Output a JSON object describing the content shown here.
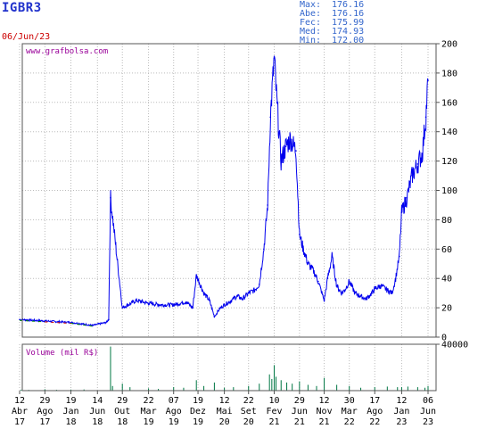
{
  "header": {
    "ticker": "IGBR3",
    "date": "06/Jun/23",
    "stats": [
      {
        "label": "Max:",
        "value": "176.16"
      },
      {
        "label": "Abe:",
        "value": "176.16"
      },
      {
        "label": "Fec:",
        "value": "175.99"
      },
      {
        "label": "Med:",
        "value": "174.93"
      },
      {
        "label": "Min:",
        "value": "172.00"
      }
    ],
    "watermark": "www.grafbolsa.com"
  },
  "colors": {
    "price_line": "#0000ee",
    "price_low": "#cc0000",
    "price_mid": "#008800",
    "volume": "#007744",
    "grid": "#bbbbbb",
    "frame": "#555555",
    "title": "#2233cc",
    "date": "#cc0000",
    "stats": "#3366cc",
    "watermark": "#990099"
  },
  "chart_data": [
    {
      "type": "line",
      "title": "",
      "xlabel": "",
      "ylabel": "",
      "ylim": [
        0,
        200
      ],
      "y_ticks": [
        "0",
        "20",
        "40",
        "60",
        "80",
        "100",
        "120",
        "140",
        "160",
        "180",
        "200"
      ],
      "grid": true,
      "x_ticks": [
        {
          "day": "12",
          "month": "Abr",
          "year": "17",
          "date": "2017-04-12"
        },
        {
          "day": "29",
          "month": "Ago",
          "year": "17",
          "date": "2017-08-29"
        },
        {
          "day": "19",
          "month": "Jan",
          "year": "18",
          "date": "2018-01-19"
        },
        {
          "day": "14",
          "month": "Jun",
          "year": "18",
          "date": "2018-06-14"
        },
        {
          "day": "29",
          "month": "Out",
          "year": "18",
          "date": "2018-10-29"
        },
        {
          "day": "22",
          "month": "Mar",
          "year": "19",
          "date": "2019-03-22"
        },
        {
          "day": "07",
          "month": "Ago",
          "year": "19",
          "date": "2019-08-07"
        },
        {
          "day": "19",
          "month": "Dez",
          "year": "19",
          "date": "2019-12-19"
        },
        {
          "day": "12",
          "month": "Mai",
          "year": "20",
          "date": "2020-05-12"
        },
        {
          "day": "22",
          "month": "Set",
          "year": "20",
          "date": "2020-09-22"
        },
        {
          "day": "10",
          "month": "Fev",
          "year": "21",
          "date": "2021-02-10"
        },
        {
          "day": "29",
          "month": "Jun",
          "year": "21",
          "date": "2021-06-29"
        },
        {
          "day": "12",
          "month": "Nov",
          "year": "21",
          "date": "2021-11-12"
        },
        {
          "day": "30",
          "month": "Mar",
          "year": "22",
          "date": "2022-03-30"
        },
        {
          "day": "17",
          "month": "Ago",
          "year": "22",
          "date": "2022-08-17"
        },
        {
          "day": "12",
          "month": "Jan",
          "year": "23",
          "date": "2023-01-12"
        },
        {
          "day": "06",
          "month": "Jun",
          "year": "23",
          "date": "2023-06-06"
        }
      ],
      "series": [
        {
          "x": [
            "2017-04-12",
            "2017-08-29",
            "2018-01-19",
            "2018-05-20",
            "2018-08-01",
            "2018-08-15",
            "2018-08-25",
            "2018-10-29",
            "2019-01-15",
            "2019-03-22",
            "2019-06-01",
            "2019-08-07",
            "2019-10-15",
            "2019-11-20",
            "2019-12-10",
            "2020-01-20",
            "2020-02-20",
            "2020-03-18",
            "2020-04-20",
            "2020-05-12",
            "2020-06-20",
            "2020-07-20",
            "2020-08-20",
            "2020-09-22",
            "2020-10-25",
            "2020-11-20",
            "2020-12-15",
            "2021-01-05",
            "2021-01-20",
            "2021-02-10",
            "2021-02-25",
            "2021-03-20",
            "2021-04-15",
            "2021-05-10",
            "2021-06-10",
            "2021-06-29",
            "2021-07-20",
            "2021-08-15",
            "2021-09-15",
            "2021-10-10",
            "2021-11-12",
            "2021-12-01",
            "2021-12-25",
            "2022-01-20",
            "2022-02-15",
            "2022-03-05",
            "2022-03-30",
            "2022-04-30",
            "2022-05-30",
            "2022-06-30",
            "2022-08-01",
            "2022-08-17",
            "2022-09-20",
            "2022-10-25",
            "2022-11-20",
            "2022-12-10",
            "2022-12-30",
            "2023-01-12",
            "2023-02-10",
            "2023-03-10",
            "2023-04-10",
            "2023-05-05",
            "2023-05-25",
            "2023-06-06"
          ],
          "y": [
            12,
            11,
            10,
            8,
            10,
            12,
            95,
            20,
            25,
            23,
            22,
            22,
            24,
            20,
            42,
            30,
            25,
            14,
            20,
            22,
            25,
            28,
            26,
            30,
            32,
            36,
            60,
            90,
            150,
            190,
            160,
            120,
            130,
            135,
            127,
            70,
            60,
            50,
            45,
            38,
            25,
            40,
            55,
            35,
            30,
            32,
            38,
            30,
            28,
            26,
            30,
            33,
            35,
            32,
            30,
            40,
            55,
            85,
            95,
            110,
            118,
            125,
            150,
            175
          ]
        }
      ]
    },
    {
      "type": "bar",
      "title": "Volume (mil R$)",
      "xlabel": "",
      "ylabel": "",
      "ylim": [
        0,
        40000
      ],
      "y_ticks": [
        "40000"
      ],
      "series": [
        {
          "x": [
            "2017-04-20",
            "2017-06-01",
            "2017-08-29",
            "2017-11-01",
            "2018-01-19",
            "2018-04-01",
            "2018-08-25",
            "2018-09-05",
            "2018-10-29",
            "2018-12-10",
            "2019-03-22",
            "2019-05-15",
            "2019-08-07",
            "2019-10-01",
            "2019-12-10",
            "2020-01-20",
            "2020-03-18",
            "2020-05-12",
            "2020-07-01",
            "2020-09-22",
            "2020-11-20",
            "2021-01-15",
            "2021-01-28",
            "2021-02-10",
            "2021-02-20",
            "2021-03-20",
            "2021-04-20",
            "2021-05-20",
            "2021-06-29",
            "2021-08-15",
            "2021-10-01",
            "2021-11-12",
            "2022-01-20",
            "2022-03-30",
            "2022-06-01",
            "2022-08-17",
            "2022-10-25",
            "2022-12-20",
            "2023-01-12",
            "2023-02-15",
            "2023-04-10",
            "2023-05-20",
            "2023-06-06"
          ],
          "values": [
            800,
            600,
            1200,
            700,
            900,
            1000,
            38000,
            4000,
            6000,
            3000,
            2000,
            1500,
            3000,
            2500,
            9000,
            4000,
            7000,
            2500,
            3000,
            4000,
            6000,
            14000,
            10000,
            22000,
            12000,
            9000,
            7000,
            6000,
            8000,
            5000,
            4000,
            11000,
            5000,
            4000,
            2500,
            3000,
            3500,
            3000,
            3000,
            3500,
            3000,
            2500,
            4000
          ]
        }
      ]
    }
  ]
}
